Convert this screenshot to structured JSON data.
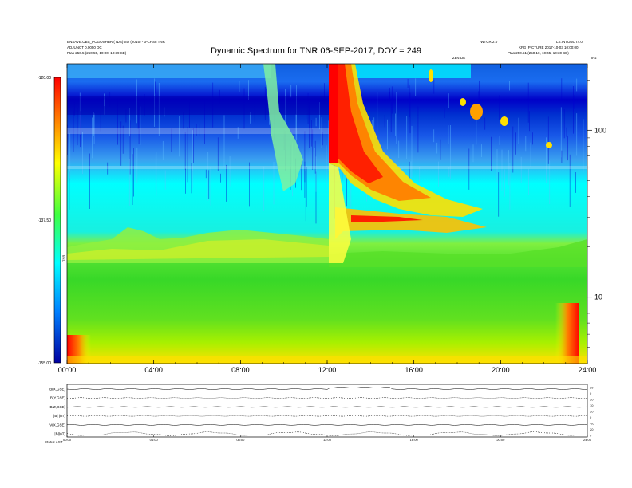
{
  "header": {
    "title": "Dynamic Spectrum for TNR 06-SEP-2017, DOY = 249",
    "meta_left_1": "ENSAVE.OBS_POGOSHBR (TDS) SO (2015) - 3-CHS8 TNR",
    "meta_left_2": "ADJUNCT 0.0050 DC",
    "meta_left_3": "Ptas   250.5 (250.55, 10:00, 10:39 SE)",
    "meta_mid": "IWTCR 2.0",
    "meta_right_1": "LS:INTONCT4.0",
    "meta_right_2": "KFG_PICTURE 2017-10-03 10:00:00",
    "meta_right_3": "Ptas   250.51 (250.10, 10:45, 10:30 SE)",
    "small_mark": "ZBV/DE",
    "corner_mark": "kHz"
  },
  "colorbar": {
    "label": "TNR",
    "ticks": [
      "-120.00",
      "-137.50",
      "-155.00"
    ]
  },
  "chart_data": {
    "type": "heatmap",
    "title": "Dynamic Spectrum for TNR 06-SEP-2017, DOY = 249",
    "xlabel": "",
    "ylabel": "kHz",
    "x_ticks": [
      "00:00",
      "04:00",
      "08:00",
      "12:00",
      "16:00",
      "20:00",
      "24:00"
    ],
    "x_range_hours": [
      0,
      24
    ],
    "y_scale": "log",
    "y_ticks": [
      10,
      100
    ],
    "y_range_khz": [
      4,
      250
    ],
    "z_range_db": [
      -155,
      -120
    ],
    "colorbar_ticks_db": [
      -120,
      -137.5,
      -155
    ],
    "features": {
      "background_low_freq_db": -145,
      "background_mid_freq_db": -137.5,
      "background_high_freq_db": -128,
      "type_ii_burst_start_h": 12.0,
      "type_ii_burst_end_h": 19.0,
      "radio_noise_edge_h": [
        0.3,
        23.3
      ]
    },
    "panels": [
      "B(X,GSE)",
      "B(Y,GSE)",
      "B(Z,GSE)",
      "|B|(nT)",
      "V(X,GSE)",
      "|B|(nT)"
    ]
  },
  "bottom_panel": {
    "panel_labels": [
      "B(X,GSE)",
      "B(Y,GSE)",
      "B(Z,GSE)",
      "|B| (nT)",
      "V(X,GSE)",
      "|B|(nT)"
    ],
    "right_labels": [
      "20",
      "0",
      "20",
      "10",
      "20",
      "0",
      "-20",
      "20",
      "0"
    ],
    "time_ticks": [
      "00:00",
      "04:00",
      "08:00",
      "12:00",
      "16:00",
      "20:00",
      "24:00"
    ],
    "footer_left": "Status  AST"
  }
}
